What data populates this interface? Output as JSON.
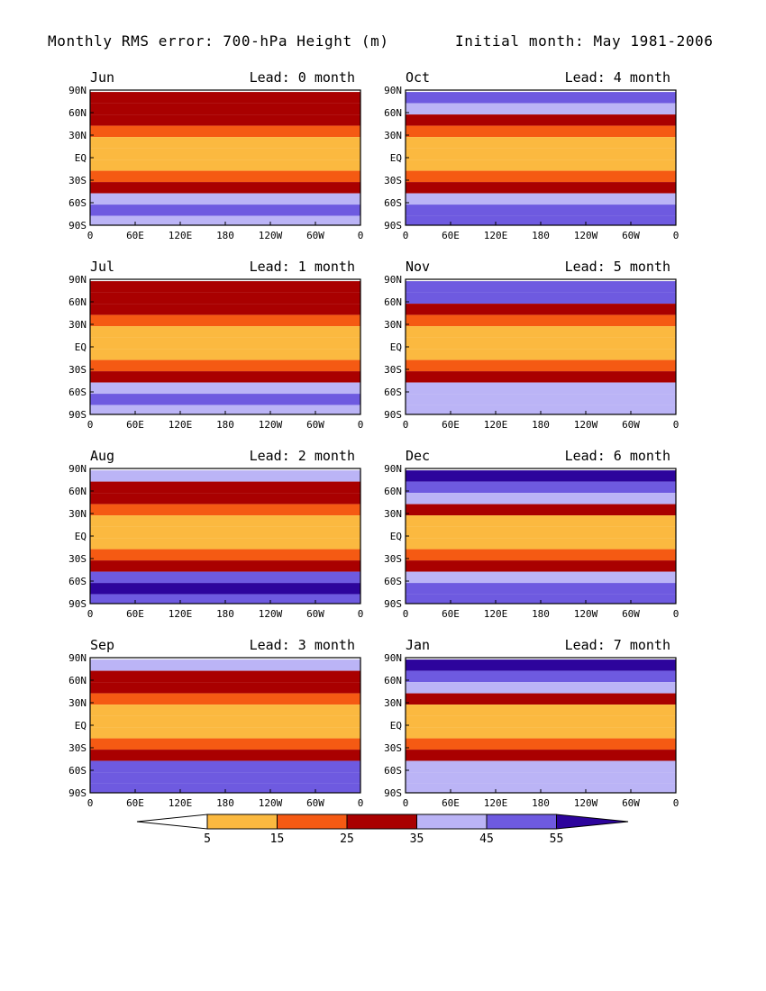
{
  "header": {
    "title": "Monthly RMS error: 700-hPa Height (m)",
    "initial": "Initial month: May 1981-2006"
  },
  "chart_data": {
    "type": "heatmap",
    "variable": "Monthly RMS error: 700-hPa Height (m)",
    "xticks": [
      "0",
      "60E",
      "120E",
      "180",
      "120W",
      "60W",
      "0"
    ],
    "yticks": [
      "90N",
      "60N",
      "30N",
      "EQ",
      "30S",
      "60S",
      "90S"
    ],
    "colorbar": {
      "levels": [
        5,
        15,
        25,
        35,
        45,
        55
      ],
      "labels": [
        "5",
        "15",
        "25",
        "35",
        "45",
        "55"
      ],
      "colors": [
        "#ffffff",
        "#fbb940",
        "#f55a13",
        "#a90000",
        "#bbb4f6",
        "#6e5ae0",
        "#2d049c"
      ]
    },
    "panels": [
      {
        "month": "Jun",
        "lead": "Lead: 0 month",
        "zonal_rms": [
          {
            "lat": 80,
            "rms": 30
          },
          {
            "lat": 65,
            "rms": 30
          },
          {
            "lat": 50,
            "rms": 25
          },
          {
            "lat": 35,
            "rms": 18
          },
          {
            "lat": 20,
            "rms": 10
          },
          {
            "lat": 5,
            "rms": 6
          },
          {
            "lat": -10,
            "rms": 10
          },
          {
            "lat": -25,
            "rms": 18
          },
          {
            "lat": -40,
            "rms": 30
          },
          {
            "lat": -55,
            "rms": 40
          },
          {
            "lat": -70,
            "rms": 45
          },
          {
            "lat": -85,
            "rms": 40
          }
        ]
      },
      {
        "month": "Jul",
        "lead": "Lead: 1 month",
        "zonal_rms": [
          {
            "lat": 80,
            "rms": 32
          },
          {
            "lat": 65,
            "rms": 30
          },
          {
            "lat": 50,
            "rms": 25
          },
          {
            "lat": 35,
            "rms": 17
          },
          {
            "lat": 20,
            "rms": 10
          },
          {
            "lat": 5,
            "rms": 7
          },
          {
            "lat": -10,
            "rms": 10
          },
          {
            "lat": -25,
            "rms": 18
          },
          {
            "lat": -40,
            "rms": 32
          },
          {
            "lat": -55,
            "rms": 44
          },
          {
            "lat": -70,
            "rms": 50
          },
          {
            "lat": -85,
            "rms": 40
          }
        ]
      },
      {
        "month": "Aug",
        "lead": "Lead: 2 month",
        "zonal_rms": [
          {
            "lat": 80,
            "rms": 36
          },
          {
            "lat": 65,
            "rms": 32
          },
          {
            "lat": 50,
            "rms": 26
          },
          {
            "lat": 35,
            "rms": 18
          },
          {
            "lat": 20,
            "rms": 11
          },
          {
            "lat": 5,
            "rms": 8
          },
          {
            "lat": -10,
            "rms": 11
          },
          {
            "lat": -25,
            "rms": 19
          },
          {
            "lat": -40,
            "rms": 33
          },
          {
            "lat": -55,
            "rms": 45
          },
          {
            "lat": -70,
            "rms": 55
          },
          {
            "lat": -85,
            "rms": 45
          }
        ]
      },
      {
        "month": "Sep",
        "lead": "Lead: 3 month",
        "zonal_rms": [
          {
            "lat": 80,
            "rms": 40
          },
          {
            "lat": 65,
            "rms": 33
          },
          {
            "lat": 50,
            "rms": 27
          },
          {
            "lat": 35,
            "rms": 19
          },
          {
            "lat": 20,
            "rms": 12
          },
          {
            "lat": 5,
            "rms": 9
          },
          {
            "lat": -10,
            "rms": 12
          },
          {
            "lat": -25,
            "rms": 19
          },
          {
            "lat": -40,
            "rms": 32
          },
          {
            "lat": -55,
            "rms": 45
          },
          {
            "lat": -70,
            "rms": 52
          },
          {
            "lat": -85,
            "rms": 45
          }
        ]
      },
      {
        "month": "Oct",
        "lead": "Lead: 4 month",
        "zonal_rms": [
          {
            "lat": 80,
            "rms": 46
          },
          {
            "lat": 65,
            "rms": 36
          },
          {
            "lat": 50,
            "rms": 28
          },
          {
            "lat": 35,
            "rms": 20
          },
          {
            "lat": 20,
            "rms": 12
          },
          {
            "lat": 5,
            "rms": 10
          },
          {
            "lat": -10,
            "rms": 12
          },
          {
            "lat": -25,
            "rms": 20
          },
          {
            "lat": -40,
            "rms": 30
          },
          {
            "lat": -55,
            "rms": 42
          },
          {
            "lat": -70,
            "rms": 50
          },
          {
            "lat": -85,
            "rms": 46
          }
        ]
      },
      {
        "month": "Nov",
        "lead": "Lead: 5 month",
        "zonal_rms": [
          {
            "lat": 80,
            "rms": 52
          },
          {
            "lat": 65,
            "rms": 45
          },
          {
            "lat": 50,
            "rms": 33
          },
          {
            "lat": 35,
            "rms": 22
          },
          {
            "lat": 20,
            "rms": 13
          },
          {
            "lat": 5,
            "rms": 9
          },
          {
            "lat": -10,
            "rms": 12
          },
          {
            "lat": -25,
            "rms": 20
          },
          {
            "lat": -40,
            "rms": 30
          },
          {
            "lat": -55,
            "rms": 38
          },
          {
            "lat": -70,
            "rms": 42
          },
          {
            "lat": -85,
            "rms": 40
          }
        ]
      },
      {
        "month": "Dec",
        "lead": "Lead: 6 month",
        "zonal_rms": [
          {
            "lat": 80,
            "rms": 56
          },
          {
            "lat": 65,
            "rms": 50
          },
          {
            "lat": 50,
            "rms": 38
          },
          {
            "lat": 35,
            "rms": 25
          },
          {
            "lat": 20,
            "rms": 14
          },
          {
            "lat": 5,
            "rms": 10
          },
          {
            "lat": -10,
            "rms": 14
          },
          {
            "lat": -25,
            "rms": 22
          },
          {
            "lat": -40,
            "rms": 32
          },
          {
            "lat": -55,
            "rms": 40
          },
          {
            "lat": -70,
            "rms": 45
          },
          {
            "lat": -85,
            "rms": 50
          }
        ]
      },
      {
        "month": "Jan",
        "lead": "Lead: 7 month",
        "zonal_rms": [
          {
            "lat": 80,
            "rms": 58
          },
          {
            "lat": 65,
            "rms": 52
          },
          {
            "lat": 50,
            "rms": 40
          },
          {
            "lat": 35,
            "rms": 26
          },
          {
            "lat": 20,
            "rms": 14
          },
          {
            "lat": 5,
            "rms": 12
          },
          {
            "lat": -10,
            "rms": 14
          },
          {
            "lat": -25,
            "rms": 20
          },
          {
            "lat": -40,
            "rms": 30
          },
          {
            "lat": -55,
            "rms": 35
          },
          {
            "lat": -70,
            "rms": 40
          },
          {
            "lat": -85,
            "rms": 35
          }
        ]
      }
    ]
  }
}
